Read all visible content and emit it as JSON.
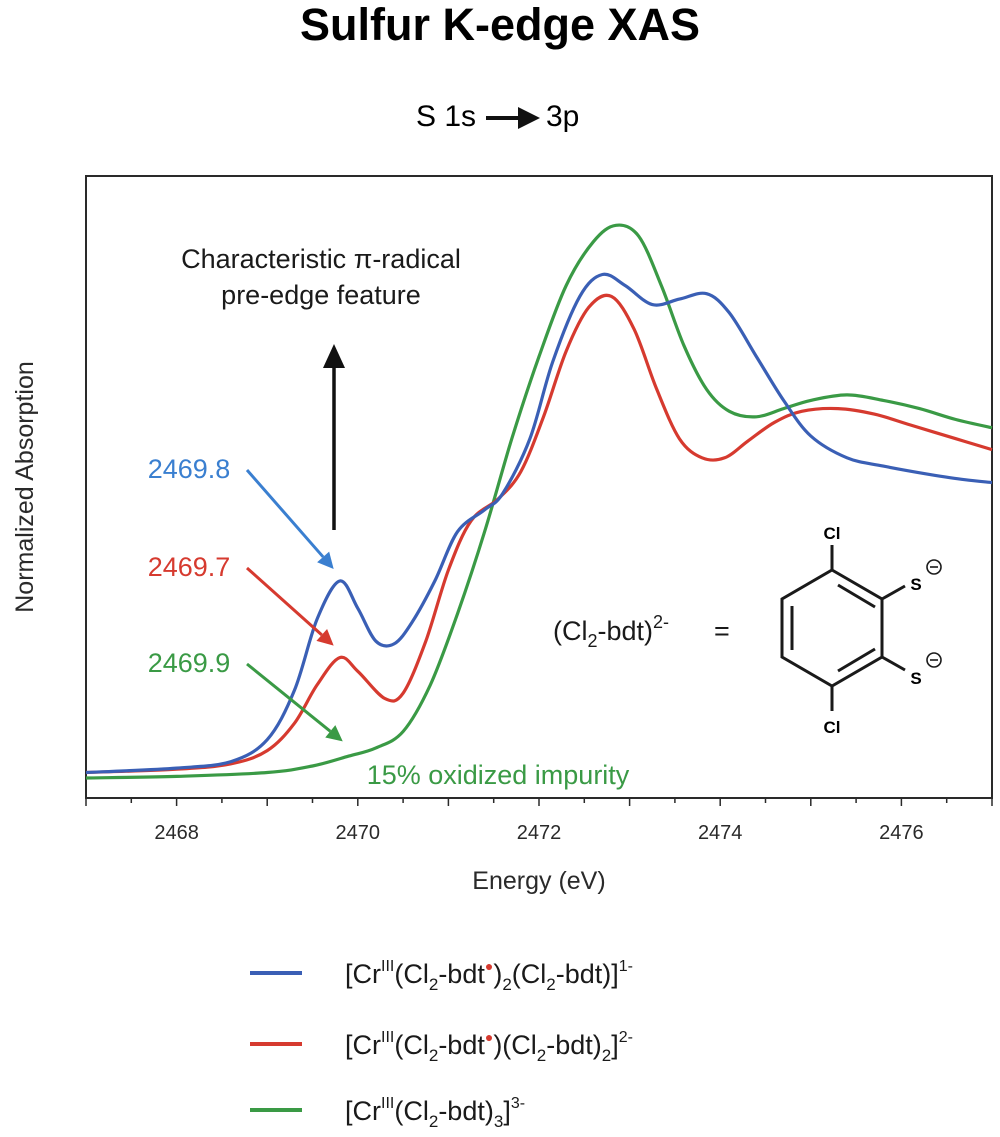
{
  "chart_data": {
    "type": "line",
    "title": "Sulfur K-edge XAS",
    "subtitle": {
      "left": "S 1s",
      "right": "3p"
    },
    "xlabel": "Energy (eV)",
    "ylabel": "Normalized Absorption",
    "xlim": [
      2467.0,
      2477.0
    ],
    "ylim": [
      0.0,
      1.1
    ],
    "x_ticks": [
      2468,
      2470,
      2472,
      2474,
      2476
    ],
    "y_ticks_labeled": false,
    "grid": false,
    "legend_position": "bottom",
    "series": [
      {
        "color": "#3a5fb5",
        "legend": {
          "a": "[Cr",
          "b": "III",
          "c": "(Cl",
          "d": "2",
          "e": "-bdt",
          "f": ")",
          "g": "2",
          "h": "(Cl",
          "i": "2",
          "j": "-bdt)]",
          "k": "1-"
        },
        "points": [
          [
            2467.0,
            0.01
          ],
          [
            2468.0,
            0.018
          ],
          [
            2468.6,
            0.03
          ],
          [
            2469.0,
            0.07
          ],
          [
            2469.3,
            0.16
          ],
          [
            2469.55,
            0.29
          ],
          [
            2469.8,
            0.36
          ],
          [
            2470.0,
            0.31
          ],
          [
            2470.2,
            0.25
          ],
          [
            2470.4,
            0.245
          ],
          [
            2470.6,
            0.285
          ],
          [
            2470.85,
            0.36
          ],
          [
            2471.1,
            0.45
          ],
          [
            2471.4,
            0.49
          ],
          [
            2471.6,
            0.52
          ],
          [
            2471.9,
            0.62
          ],
          [
            2472.15,
            0.76
          ],
          [
            2472.45,
            0.88
          ],
          [
            2472.7,
            0.92
          ],
          [
            2472.95,
            0.9
          ],
          [
            2473.25,
            0.865
          ],
          [
            2473.55,
            0.875
          ],
          [
            2473.85,
            0.885
          ],
          [
            2474.1,
            0.85
          ],
          [
            2474.4,
            0.77
          ],
          [
            2474.7,
            0.69
          ],
          [
            2475.0,
            0.625
          ],
          [
            2475.4,
            0.585
          ],
          [
            2475.8,
            0.57
          ],
          [
            2476.3,
            0.555
          ],
          [
            2476.7,
            0.545
          ],
          [
            2477.0,
            0.54
          ]
        ]
      },
      {
        "color": "#d63a2f",
        "legend": {
          "a": "[Cr",
          "b": "III",
          "c": "(Cl",
          "d": "2",
          "e": "-bdt",
          "f": ")(Cl",
          "g": "2",
          "h": "-bdt)",
          "i": "2",
          "j": "]",
          "k": "2-"
        },
        "points": [
          [
            2467.0,
            0.01
          ],
          [
            2468.0,
            0.016
          ],
          [
            2468.6,
            0.026
          ],
          [
            2469.0,
            0.05
          ],
          [
            2469.3,
            0.1
          ],
          [
            2469.55,
            0.17
          ],
          [
            2469.8,
            0.22
          ],
          [
            2470.0,
            0.195
          ],
          [
            2470.3,
            0.145
          ],
          [
            2470.5,
            0.155
          ],
          [
            2470.75,
            0.25
          ],
          [
            2471.0,
            0.38
          ],
          [
            2471.25,
            0.47
          ],
          [
            2471.55,
            0.51
          ],
          [
            2471.8,
            0.56
          ],
          [
            2472.05,
            0.66
          ],
          [
            2472.3,
            0.78
          ],
          [
            2472.55,
            0.86
          ],
          [
            2472.8,
            0.88
          ],
          [
            2473.05,
            0.82
          ],
          [
            2473.3,
            0.71
          ],
          [
            2473.55,
            0.62
          ],
          [
            2473.8,
            0.585
          ],
          [
            2474.05,
            0.585
          ],
          [
            2474.3,
            0.615
          ],
          [
            2474.6,
            0.65
          ],
          [
            2474.9,
            0.67
          ],
          [
            2475.3,
            0.675
          ],
          [
            2475.7,
            0.665
          ],
          [
            2476.1,
            0.645
          ],
          [
            2476.6,
            0.62
          ],
          [
            2477.0,
            0.6
          ]
        ]
      },
      {
        "color": "#3a9a45",
        "legend": {
          "a": "[Cr",
          "b": "III",
          "c": "(Cl",
          "d": "2",
          "e": "-bdt)",
          "f": "3",
          "g": "]",
          "h": "",
          "i": "",
          "j": "",
          "k": "3-"
        },
        "points": [
          [
            2467.0,
            0.0
          ],
          [
            2468.0,
            0.003
          ],
          [
            2469.0,
            0.01
          ],
          [
            2469.5,
            0.022
          ],
          [
            2469.9,
            0.04
          ],
          [
            2470.2,
            0.055
          ],
          [
            2470.5,
            0.085
          ],
          [
            2470.8,
            0.17
          ],
          [
            2471.1,
            0.3
          ],
          [
            2471.4,
            0.45
          ],
          [
            2471.7,
            0.62
          ],
          [
            2472.0,
            0.77
          ],
          [
            2472.3,
            0.9
          ],
          [
            2472.6,
            0.98
          ],
          [
            2472.85,
            1.01
          ],
          [
            2473.1,
            0.99
          ],
          [
            2473.35,
            0.9
          ],
          [
            2473.6,
            0.79
          ],
          [
            2473.85,
            0.71
          ],
          [
            2474.1,
            0.67
          ],
          [
            2474.4,
            0.66
          ],
          [
            2474.7,
            0.675
          ],
          [
            2475.0,
            0.69
          ],
          [
            2475.4,
            0.7
          ],
          [
            2475.8,
            0.69
          ],
          [
            2476.2,
            0.675
          ],
          [
            2476.6,
            0.655
          ],
          [
            2477.0,
            0.64
          ]
        ]
      }
    ],
    "annotations": {
      "feature_line1": "Characteristic π-radical",
      "feature_line2": "pre-edge feature",
      "peak_labels": [
        {
          "text": "2469.8",
          "color": "#3a7fd0",
          "target": [
            2469.8,
            0.36
          ]
        },
        {
          "text": "2469.7",
          "color": "#d63a2f",
          "target": [
            2469.8,
            0.22
          ]
        },
        {
          "text": "2469.9",
          "color": "#3a9a45",
          "target": [
            2469.9,
            0.045
          ]
        }
      ],
      "impurity": "15% oxidized impurity",
      "ligand": {
        "a": "(Cl",
        "b": "2",
        "c": "-bdt)",
        "d": "2-",
        "e": "="
      },
      "molecule": {
        "cl": "Cl",
        "s": "S"
      }
    }
  }
}
